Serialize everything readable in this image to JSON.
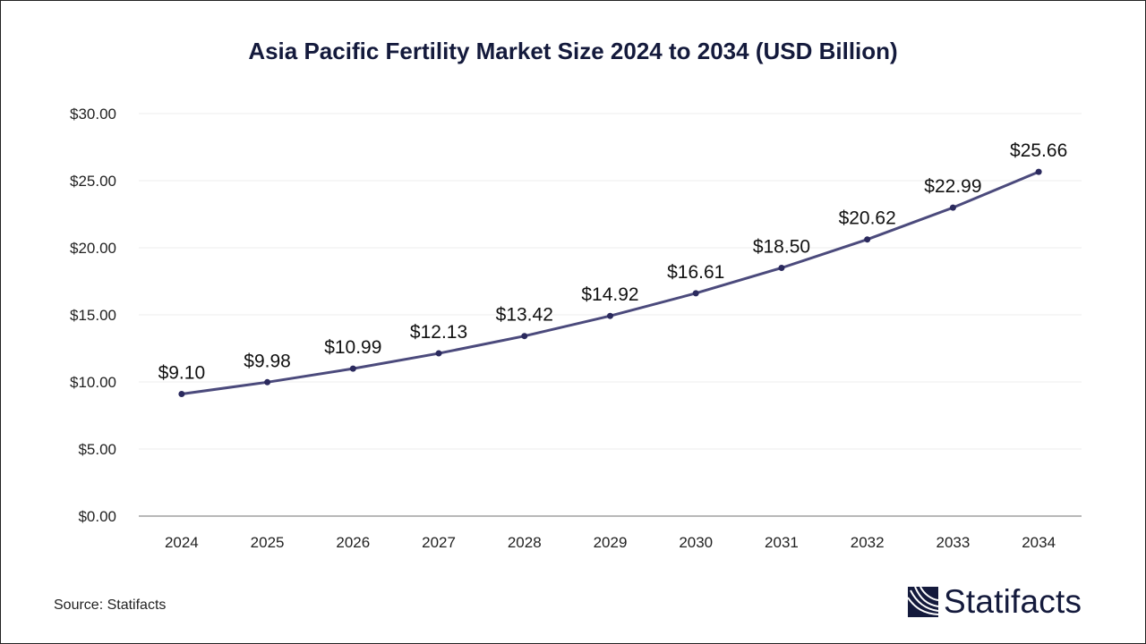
{
  "chart_data": {
    "type": "line",
    "title": "Asia Pacific Fertility Market Size 2024 to 2034 (USD Billion)",
    "categories": [
      "2024",
      "2025",
      "2026",
      "2027",
      "2028",
      "2029",
      "2030",
      "2031",
      "2032",
      "2033",
      "2034"
    ],
    "values": [
      9.1,
      9.98,
      10.99,
      12.13,
      13.42,
      14.92,
      16.61,
      18.5,
      20.62,
      22.99,
      25.66
    ],
    "data_labels": [
      "$9.10",
      "$9.98",
      "$10.99",
      "$12.13",
      "$13.42",
      "$14.92",
      "$16.61",
      "$18.50",
      "$20.62",
      "$22.99",
      "$25.66"
    ],
    "yticks": [
      "$0.00",
      "$5.00",
      "$10.00",
      "$15.00",
      "$20.00",
      "$25.00",
      "$30.00"
    ],
    "ylim": [
      0,
      30
    ],
    "xlabel": "",
    "ylabel": "",
    "grid": true,
    "legend": "none",
    "colors": {
      "line": "#4b4a7c",
      "marker": "#2b2a5e",
      "title": "#141a3c"
    }
  },
  "source": "Source: Statifacts",
  "logo": {
    "text": "Statifacts"
  }
}
